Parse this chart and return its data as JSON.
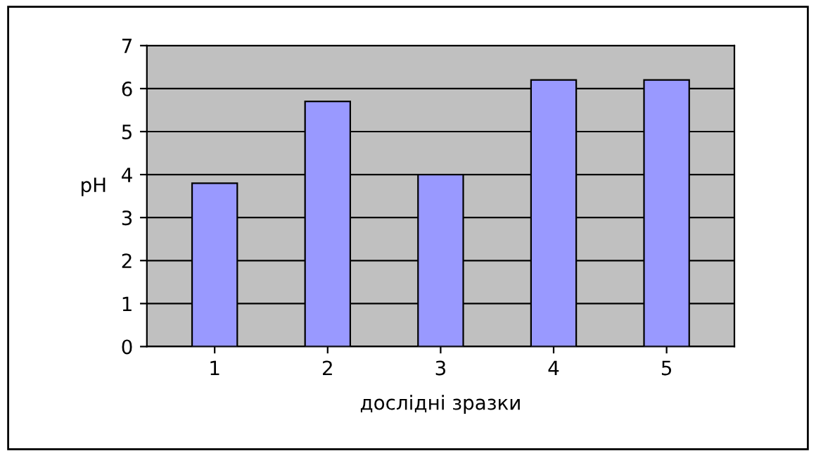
{
  "chart_data": {
    "type": "bar",
    "xlabel": "дослідні зразки",
    "ylabel": "pH",
    "categories": [
      "1",
      "2",
      "3",
      "4",
      "5"
    ],
    "series": [
      {
        "color": "#9999ff",
        "values": [
          3.8,
          5.7,
          4.0,
          6.2,
          6.2
        ]
      }
    ],
    "ylim": [
      0,
      7
    ],
    "yticks": [
      0,
      1,
      2,
      3,
      4,
      5,
      6,
      7
    ],
    "grid": "y",
    "legend": false
  }
}
